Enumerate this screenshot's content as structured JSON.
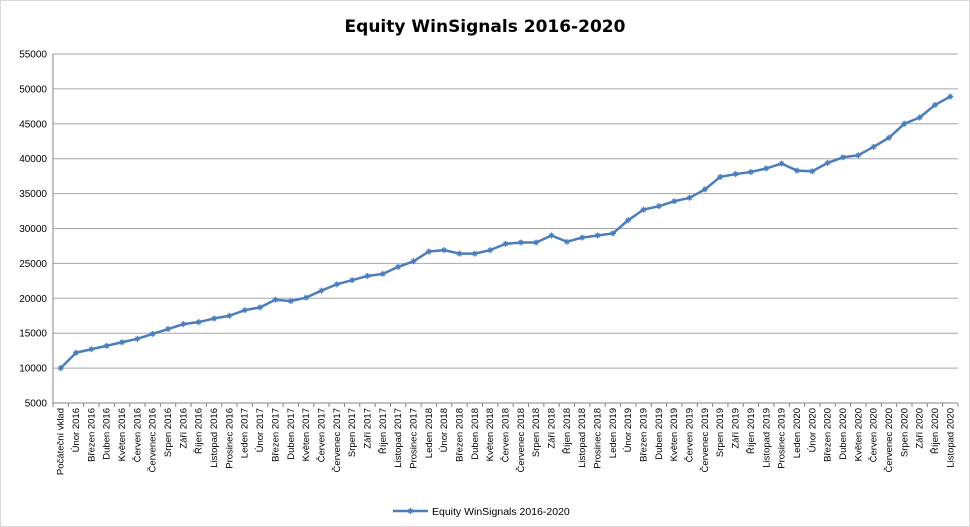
{
  "chart_data": {
    "type": "line",
    "title": "Equity WinSignals 2016-2020",
    "xlabel": "",
    "ylabel": "",
    "ylim": [
      5000,
      55000
    ],
    "yticks": [
      5000,
      10000,
      15000,
      20000,
      25000,
      30000,
      35000,
      40000,
      45000,
      50000,
      55000
    ],
    "grid": true,
    "legend_position": "bottom",
    "line_color": "#4a7ebb",
    "categories": [
      "Počáteční vklad",
      "Únor 2016",
      "Březen 2016",
      "Duben 2016",
      "Květen 2016",
      "Červen 2016",
      "Červenec 2016",
      "Srpen 2016",
      "Září 2016",
      "Říjen 2016",
      "Listopad 2016",
      "Prosinec 2016",
      "Leden 2017",
      "Únor 2017",
      "Březen 2017",
      "Duben 2017",
      "Květen 2017",
      "Červen 2017",
      "Červenec 2017",
      "Srpen 2017",
      "Září 2017",
      "Říjen 2017",
      "Listopad 2017",
      "Prosinec 2017",
      "Leden 2018",
      "Únor 2018",
      "Březen 2018",
      "Duben 2018",
      "Květen 2018",
      "Červen 2018",
      "Červenec 2018",
      "Srpen 2018",
      "Září 2018",
      "Říjen 2018",
      "Listopad 2018",
      "Prosinec 2018",
      "Leden 2019",
      "Únor 2019",
      "Březen 2019",
      "Duben 2019",
      "Květen 2019",
      "Červen 2019",
      "Červenec 2019",
      "Srpen 2019",
      "Září 2019",
      "Říjen 2019",
      "Listopad 2019",
      "Prosinec 2019",
      "Leden 2020",
      "Únor 2020",
      "Březen 2020",
      "Duben 2020",
      "Květen 2020",
      "Červen 2020",
      "Červenec 2020",
      "Srpen 2020",
      "Září 2020",
      "Říjen 2020",
      "Listopad 2020"
    ],
    "series": [
      {
        "name": "Equity WinSignals 2016-2020",
        "values": [
          10000,
          12200,
          12700,
          13200,
          13700,
          14200,
          14900,
          15600,
          16300,
          16600,
          17100,
          17500,
          18300,
          18700,
          19800,
          19600,
          20100,
          21100,
          22000,
          22600,
          23200,
          23500,
          24500,
          25300,
          26700,
          26900,
          26400,
          26400,
          26900,
          27800,
          28000,
          28000,
          29000,
          28100,
          28700,
          29000,
          29300,
          31200,
          32700,
          33200,
          33900,
          34400,
          35600,
          37400,
          37800,
          38100,
          38600,
          39300,
          38300,
          38200,
          39400,
          40200,
          40500,
          41700,
          43000,
          45000,
          45900,
          47700,
          48900
        ]
      }
    ]
  }
}
